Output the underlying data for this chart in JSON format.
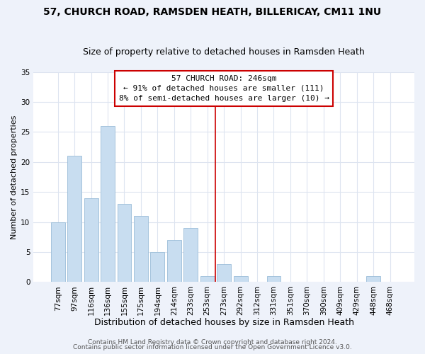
{
  "title": "57, CHURCH ROAD, RAMSDEN HEATH, BILLERICAY, CM11 1NU",
  "subtitle": "Size of property relative to detached houses in Ramsden Heath",
  "xlabel": "Distribution of detached houses by size in Ramsden Heath",
  "ylabel": "Number of detached properties",
  "categories": [
    "77sqm",
    "97sqm",
    "116sqm",
    "136sqm",
    "155sqm",
    "175sqm",
    "194sqm",
    "214sqm",
    "233sqm",
    "253sqm",
    "273sqm",
    "292sqm",
    "312sqm",
    "331sqm",
    "351sqm",
    "370sqm",
    "390sqm",
    "409sqm",
    "429sqm",
    "448sqm",
    "468sqm"
  ],
  "values": [
    10,
    21,
    14,
    26,
    13,
    11,
    5,
    7,
    9,
    1,
    3,
    1,
    0,
    1,
    0,
    0,
    0,
    0,
    0,
    1,
    0
  ],
  "bar_color": "#c8ddf0",
  "bar_edge_color": "#9bbdd8",
  "ylim": [
    0,
    35
  ],
  "yticks": [
    0,
    5,
    10,
    15,
    20,
    25,
    30,
    35
  ],
  "vline_x": 9.5,
  "vline_color": "#cc0000",
  "annotation_title": "57 CHURCH ROAD: 246sqm",
  "annotation_line1": "← 91% of detached houses are smaller (111)",
  "annotation_line2": "8% of semi-detached houses are larger (10) →",
  "annotation_box_color": "#ffffff",
  "annotation_box_edge": "#cc0000",
  "footer1": "Contains HM Land Registry data © Crown copyright and database right 2024.",
  "footer2": "Contains public sector information licensed under the Open Government Licence v3.0.",
  "fig_facecolor": "#eef2fa",
  "plot_facecolor": "#ffffff",
  "grid_color": "#dde4f0",
  "title_fontsize": 10,
  "subtitle_fontsize": 9,
  "xlabel_fontsize": 9,
  "ylabel_fontsize": 8,
  "tick_fontsize": 7.5,
  "footer_fontsize": 6.5,
  "annot_fontsize": 8
}
